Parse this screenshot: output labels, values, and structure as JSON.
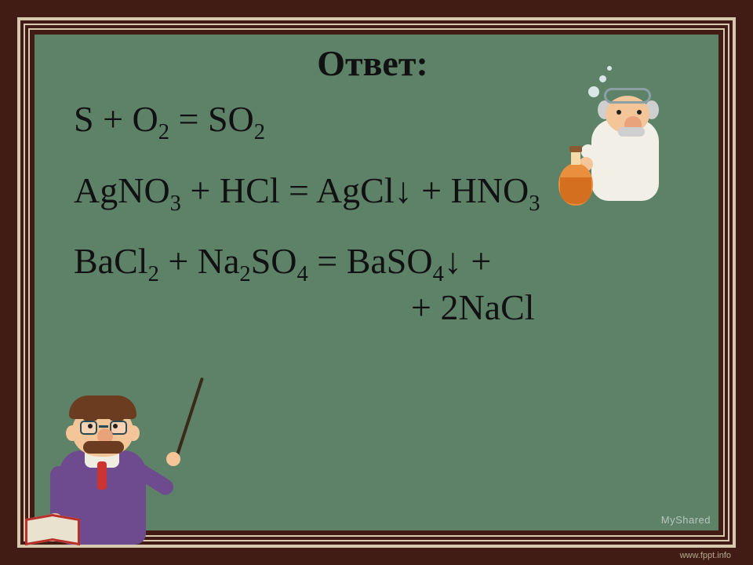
{
  "colors": {
    "frame": "#401c14",
    "border": "#d8c8b0",
    "chalkboard": "#5d8268",
    "text": "#111111"
  },
  "typography": {
    "family": "Times New Roman",
    "title_fontsize_pt": 34,
    "equation_fontsize_pt": 34,
    "title_weight": "bold"
  },
  "title": "Ответ:",
  "equations": {
    "eq1": "S + O₂ = SO₂",
    "eq2": "AgNO₃ + HCl = AgCl↓ + HNO₃",
    "eq3a": "BaCl₂ + Na₂SO₄ = BaSO₄↓ +",
    "eq3b": "+ 2NaCl"
  },
  "watermark": "MyShared",
  "footer_brand": "www.fppt.info",
  "characters": {
    "scientist_icon": "scientist-with-flask",
    "teacher_icon": "teacher-with-book-and-pointer"
  }
}
